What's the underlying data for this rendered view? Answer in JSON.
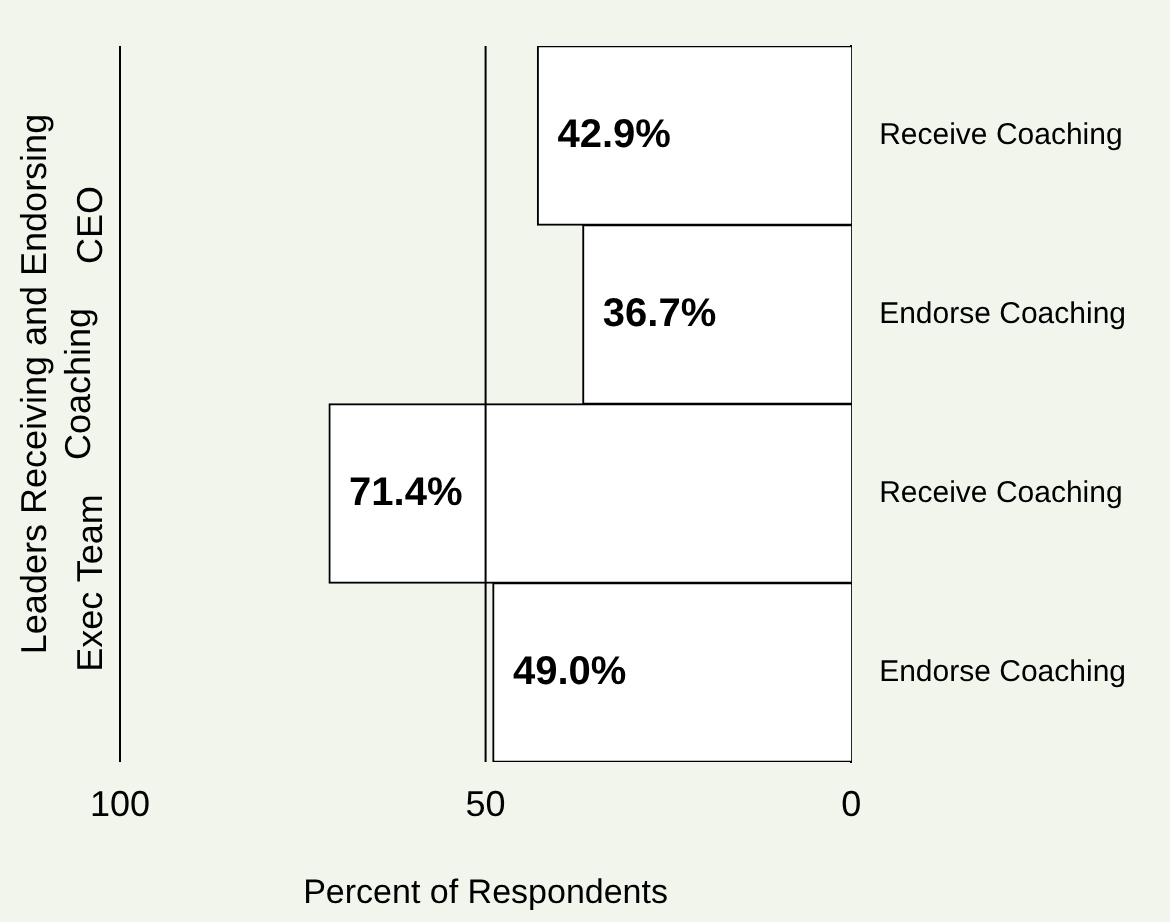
{
  "chart_data": {
    "type": "bar",
    "orientation": "horizontal",
    "ylabel": "Leaders Receiving and Endorsing Coaching",
    "xlabel": "Percent of Respondents",
    "categories": [
      "Receive Coaching",
      "Endorse Coaching",
      "Receive Coaching",
      "Endorse Coaching"
    ],
    "values": [
      42.9,
      36.7,
      71.4,
      49.0
    ],
    "value_labels": [
      "42.9%",
      "36.7%",
      "71.4%",
      "49.0%"
    ],
    "color": "#ffffff",
    "xlim": [
      100,
      0
    ],
    "xticks": [
      100,
      50,
      0
    ],
    "ref_lines": [
      {
        "axis": "x",
        "value": 50,
        "color": "#000000"
      }
    ],
    "annotations": [
      "CEO",
      "Exec Team"
    ],
    "grid": false,
    "legend": false
  }
}
